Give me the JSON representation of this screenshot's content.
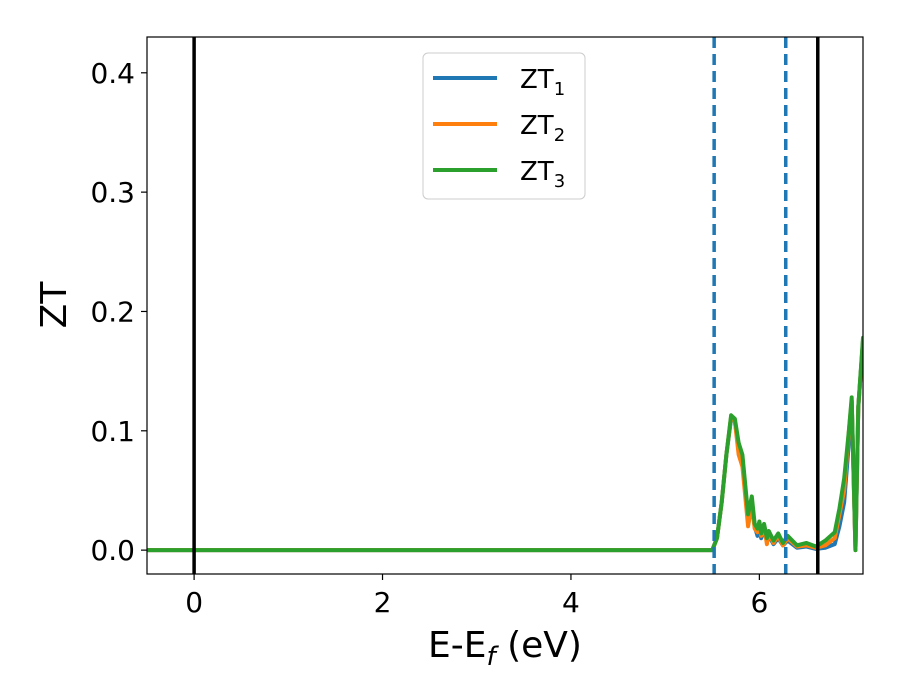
{
  "chart_data": {
    "type": "line",
    "xlabel": "E-E",
    "xlabel_sub": "f",
    "xlabel_unit": " (eV)",
    "ylabel": "ZT",
    "xlim": [
      -0.5,
      7.1
    ],
    "ylim": [
      -0.02,
      0.43
    ],
    "x_ticks": [
      0,
      2,
      4,
      6
    ],
    "y_ticks": [
      0.0,
      0.1,
      0.2,
      0.3,
      0.4
    ],
    "x_tick_labels": [
      "0",
      "2",
      "4",
      "6"
    ],
    "y_tick_labels": [
      "0.0",
      "0.1",
      "0.2",
      "0.3",
      "0.4"
    ],
    "legend_placement": "top-center",
    "vlines": [
      {
        "x": 0.0,
        "style": "solid",
        "color": "#000000"
      },
      {
        "x": 5.52,
        "style": "dashed",
        "color": "#1f77b4"
      },
      {
        "x": 6.28,
        "style": "dashed",
        "color": "#1f77b4"
      },
      {
        "x": 6.62,
        "style": "solid",
        "color": "#000000"
      }
    ],
    "series": [
      {
        "name": "ZT",
        "sub": "1",
        "color": "#1f77b4",
        "x": [
          -0.5,
          5.5,
          5.55,
          5.6,
          5.65,
          5.7,
          5.74,
          5.78,
          5.82,
          5.85,
          5.88,
          5.92,
          5.95,
          5.98,
          6.0,
          6.02,
          6.05,
          6.08,
          6.1,
          6.15,
          6.2,
          6.25,
          6.3,
          6.4,
          6.5,
          6.6,
          6.7,
          6.8,
          6.85,
          6.9,
          6.95,
          6.98,
          7.02,
          7.05,
          7.1
        ],
        "y": [
          0.0,
          0.0,
          0.01,
          0.04,
          0.08,
          0.11,
          0.108,
          0.085,
          0.075,
          0.05,
          0.025,
          0.04,
          0.02,
          0.012,
          0.016,
          0.01,
          0.018,
          0.008,
          0.012,
          0.005,
          0.01,
          0.004,
          0.008,
          0.002,
          0.003,
          0.001,
          0.002,
          0.005,
          0.02,
          0.04,
          0.09,
          0.125,
          0.0,
          0.12,
          0.175
        ]
      },
      {
        "name": "ZT",
        "sub": "2",
        "color": "#ff7f0e",
        "x": [
          -0.5,
          5.5,
          5.55,
          5.6,
          5.65,
          5.7,
          5.74,
          5.78,
          5.82,
          5.85,
          5.88,
          5.92,
          5.95,
          5.98,
          6.0,
          6.02,
          6.05,
          6.08,
          6.1,
          6.15,
          6.2,
          6.25,
          6.3,
          6.4,
          6.5,
          6.6,
          6.7,
          6.8,
          6.85,
          6.9,
          6.95,
          6.98,
          7.02,
          7.05,
          7.1
        ],
        "y": [
          0.0,
          0.0,
          0.01,
          0.04,
          0.08,
          0.112,
          0.108,
          0.08,
          0.07,
          0.045,
          0.02,
          0.038,
          0.018,
          0.015,
          0.02,
          0.012,
          0.02,
          0.005,
          0.014,
          0.006,
          0.012,
          0.004,
          0.01,
          0.003,
          0.004,
          0.002,
          0.004,
          0.01,
          0.03,
          0.05,
          0.1,
          0.125,
          0.0,
          0.12,
          0.175
        ]
      },
      {
        "name": "ZT",
        "sub": "3",
        "color": "#2ca02c",
        "x": [
          -0.5,
          5.5,
          5.55,
          5.6,
          5.65,
          5.7,
          5.74,
          5.78,
          5.82,
          5.85,
          5.88,
          5.92,
          5.95,
          5.98,
          6.0,
          6.02,
          6.05,
          6.08,
          6.1,
          6.15,
          6.2,
          6.25,
          6.3,
          6.4,
          6.5,
          6.6,
          6.7,
          6.8,
          6.85,
          6.9,
          6.95,
          6.98,
          7.02,
          7.05,
          7.1
        ],
        "y": [
          0.0,
          0.0,
          0.01,
          0.04,
          0.08,
          0.113,
          0.11,
          0.09,
          0.08,
          0.055,
          0.03,
          0.045,
          0.022,
          0.018,
          0.024,
          0.014,
          0.022,
          0.01,
          0.016,
          0.008,
          0.014,
          0.006,
          0.012,
          0.004,
          0.006,
          0.003,
          0.008,
          0.015,
          0.035,
          0.06,
          0.1,
          0.128,
          0.0,
          0.12,
          0.178
        ]
      }
    ]
  }
}
